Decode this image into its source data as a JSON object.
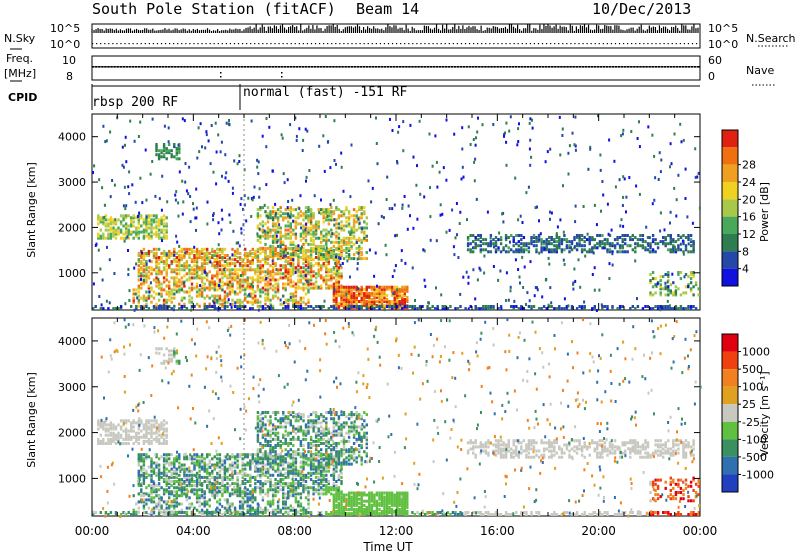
{
  "header": {
    "station": "South Pole Station (fitACF)",
    "beam": "Beam 14",
    "date": "10/Dec/2013"
  },
  "strips": {
    "nsky_label": "N.Sky",
    "nsky_ticks": [
      "10^5",
      "10^0"
    ],
    "nsearch_label": "N.Search",
    "nsearch_ticks": [
      "10^5",
      "10^0"
    ],
    "freq_label": "Freq.",
    "freq_unit": "[MHz]",
    "freq_ticks": [
      "10",
      "8"
    ],
    "nave_label": "Nave",
    "nave_ticks": [
      "60",
      "0"
    ],
    "cpid_label": "CPID",
    "cpid_segments": [
      "rbsp 200 RF",
      "normal (fast) -151 RF"
    ]
  },
  "chart_data": [
    {
      "type": "heatmap",
      "name": "power",
      "ylabel": "Slant Range [km]",
      "xlabel": "",
      "x_ticks": [
        "00:00",
        "04:00",
        "08:00",
        "12:00",
        "16:00",
        "20:00",
        "00:00"
      ],
      "y_ticks": [
        1000,
        2000,
        3000,
        4000
      ],
      "ylim": [
        180,
        4500
      ],
      "xlim_hours": [
        0,
        24
      ],
      "colorbar": {
        "label": "Power [dB]",
        "ticks": [
          "4",
          "8",
          "12",
          "16",
          "20",
          "24",
          "28"
        ],
        "colors": [
          "#1010e0",
          "#2448a8",
          "#2e7d4f",
          "#49a85a",
          "#a8c84a",
          "#f0d020",
          "#f0a020",
          "#f07010",
          "#e02010"
        ]
      },
      "features": [
        {
          "desc_hours": [
            0,
            3.2
          ],
          "range_km": [
            1700,
            2300
          ],
          "level": 0.5
        },
        {
          "desc_hours": [
            1.5,
            9.5
          ],
          "range_km": [
            600,
            1600
          ],
          "level": 0.7
        },
        {
          "desc_hours": [
            6.5,
            10.5
          ],
          "range_km": [
            1300,
            2400
          ],
          "level": 0.6
        },
        {
          "desc_hours": [
            9.5,
            12.3
          ],
          "range_km": [
            250,
            700
          ],
          "level": 0.85
        },
        {
          "desc_hours": [
            14.5,
            23.8
          ],
          "range_km": [
            1450,
            1800
          ],
          "level": 0.35
        }
      ]
    },
    {
      "type": "heatmap",
      "name": "velocity",
      "ylabel": "Slant Range [km]",
      "xlabel": "Time UT",
      "x_ticks": [
        "00:00",
        "04:00",
        "08:00",
        "12:00",
        "16:00",
        "20:00",
        "00:00"
      ],
      "y_ticks": [
        1000,
        2000,
        3000,
        4000
      ],
      "ylim": [
        180,
        4500
      ],
      "xlim_hours": [
        0,
        24
      ],
      "colorbar": {
        "label": "Velocity [m s⁻¹]",
        "ticks": [
          "1000",
          "500",
          "100",
          "25",
          "-25",
          "-100",
          "-500",
          "-1000"
        ],
        "colors": [
          "#2040c0",
          "#3070b0",
          "#3a9060",
          "#60c040",
          "#c8c8c0",
          "#e0a020",
          "#f08020",
          "#f04010",
          "#e00010"
        ]
      }
    }
  ]
}
